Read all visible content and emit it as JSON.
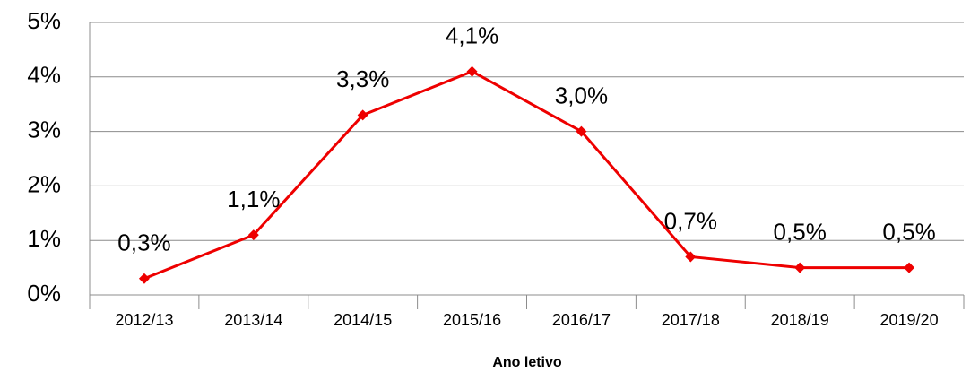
{
  "chart_data": {
    "type": "line",
    "x_label": "Ano letivo",
    "categories": [
      "2012/13",
      "2013/14",
      "2014/15",
      "2015/16",
      "2016/17",
      "2017/18",
      "2018/19",
      "2019/20"
    ],
    "series": [
      {
        "name": null,
        "color": "#ee0000",
        "values": [
          0.3,
          1.1,
          3.3,
          4.1,
          3.0,
          0.7,
          0.5,
          0.5
        ],
        "value_labels": [
          "0,3%",
          "1,1%",
          "3,3%",
          "4,1%",
          "3,0%",
          "0,7%",
          "0,5%",
          "0,5%"
        ]
      }
    ],
    "ylim": [
      0,
      5
    ],
    "yticks": [
      {
        "value": 0,
        "label": "0%"
      },
      {
        "value": 1,
        "label": "1%"
      },
      {
        "value": 2,
        "label": "2%"
      },
      {
        "value": 3,
        "label": "3%"
      },
      {
        "value": 4,
        "label": "4%"
      },
      {
        "value": 5,
        "label": "5%"
      }
    ],
    "grid": true
  }
}
